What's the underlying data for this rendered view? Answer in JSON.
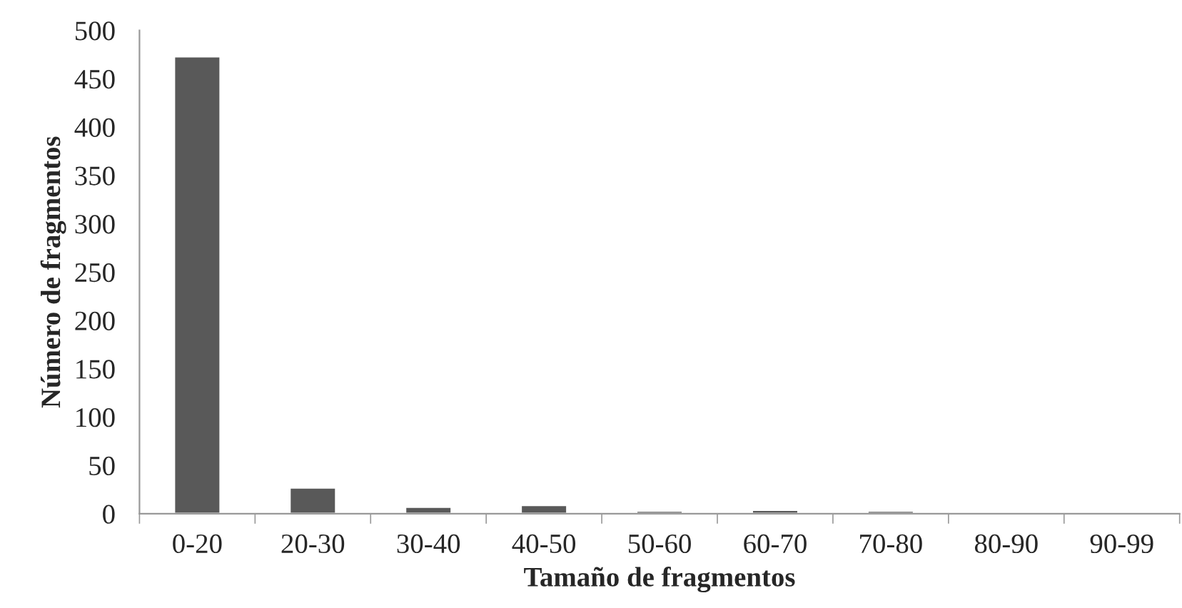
{
  "chart_data": {
    "type": "bar",
    "xlabel": "Tamaño de fragmentos",
    "ylabel": "Número de fragmentos",
    "categories": [
      "0-20",
      "20-30",
      "30-40",
      "40-50",
      "50-60",
      "60-70",
      "70-80",
      "80-90",
      "90-99"
    ],
    "values": [
      473,
      27,
      7,
      9,
      3,
      4,
      3,
      2,
      2
    ],
    "color": "#595959",
    "ylim": [
      0,
      500
    ],
    "yticks": [
      0,
      50,
      100,
      150,
      200,
      250,
      300,
      350,
      400,
      450,
      500
    ],
    "grid": false
  }
}
